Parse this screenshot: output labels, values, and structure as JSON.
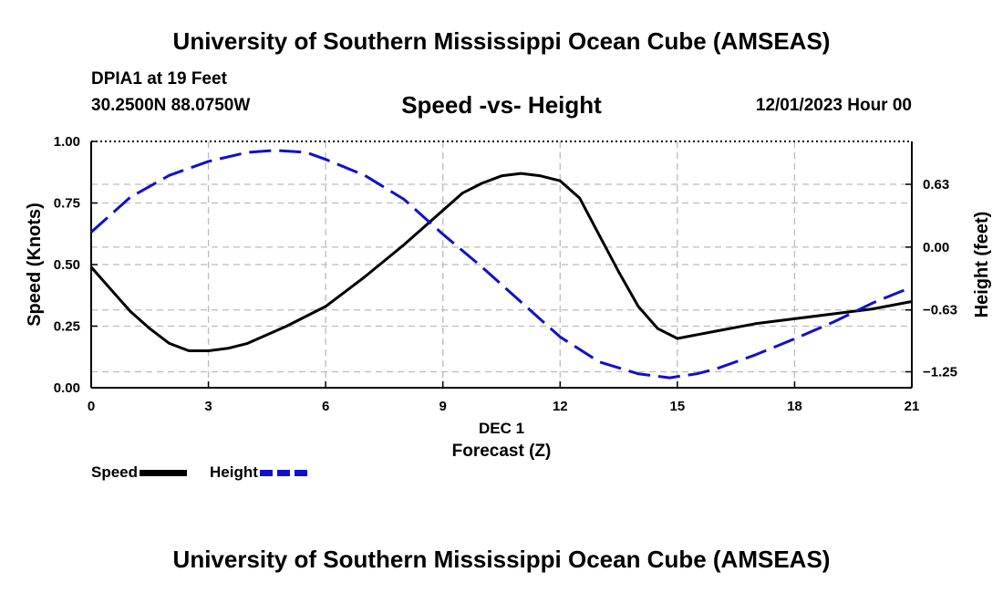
{
  "header": {
    "title": "University of Southern Mississippi Ocean Cube (AMSEAS)",
    "station": "DPIA1 at 19 Feet",
    "coords": "30.2500N  88.0750W",
    "subtitle": "Speed -vs- Height",
    "datetime": "12/01/2023 Hour 00"
  },
  "footer": {
    "title": "University of Southern Mississippi Ocean Cube (AMSEAS)"
  },
  "legend": {
    "speed": "Speed",
    "height": "Height"
  },
  "colors": {
    "speed": "#000000",
    "height": "#1010cc",
    "grid": "#bbbbbb"
  },
  "chart_data": {
    "type": "line",
    "title": "Speed -vs- Height",
    "xlabel": "Forecast (Z)",
    "xlabel_date": "DEC 1",
    "ylabel_left": "Speed (Knots)",
    "ylabel_right": "Height (feet)",
    "xlim": [
      0,
      21
    ],
    "ylim_left": [
      0,
      1
    ],
    "ylim_right": [
      -1.41,
      1.06
    ],
    "x_ticks": [
      0,
      3,
      6,
      9,
      12,
      15,
      18,
      21
    ],
    "x_tick_labels": [
      "0",
      "3",
      "6",
      "9",
      "12",
      "15",
      "18",
      "21"
    ],
    "y_left_ticks": [
      0,
      0.25,
      0.5,
      0.75,
      1.0
    ],
    "y_left_tick_labels": [
      "0.00",
      "0.25",
      "0.50",
      "0.75",
      "1.00"
    ],
    "y_right_ticks": [
      0.63,
      0.0,
      -0.63,
      -1.25
    ],
    "y_right_tick_labels": [
      "0.63",
      "0.00",
      "−0.63",
      "−1.25"
    ],
    "grid": true,
    "series": [
      {
        "name": "Speed",
        "axis": "left",
        "style": "solid",
        "x": [
          0,
          0.5,
          1,
          1.5,
          2,
          2.5,
          3,
          3.5,
          4,
          5,
          6,
          7,
          8,
          9,
          9.5,
          10,
          10.5,
          11,
          11.5,
          12,
          12.5,
          13,
          13.5,
          14,
          14.5,
          15,
          16,
          17,
          18,
          19,
          20,
          21
        ],
        "values": [
          0.49,
          0.4,
          0.31,
          0.24,
          0.18,
          0.15,
          0.15,
          0.16,
          0.18,
          0.25,
          0.33,
          0.45,
          0.58,
          0.72,
          0.79,
          0.83,
          0.86,
          0.87,
          0.86,
          0.84,
          0.77,
          0.62,
          0.47,
          0.33,
          0.24,
          0.2,
          0.23,
          0.26,
          0.28,
          0.3,
          0.32,
          0.35
        ]
      },
      {
        "name": "Height",
        "axis": "right",
        "style": "dashed",
        "x": [
          0,
          1,
          2,
          3,
          4,
          4.7,
          5.5,
          6,
          7,
          8,
          9,
          10,
          11,
          12,
          13,
          14,
          14.8,
          15.5,
          16,
          17,
          18,
          19,
          20,
          21
        ],
        "values": [
          0.15,
          0.5,
          0.72,
          0.86,
          0.95,
          0.97,
          0.95,
          0.88,
          0.72,
          0.48,
          0.13,
          -0.2,
          -0.55,
          -0.9,
          -1.15,
          -1.27,
          -1.31,
          -1.27,
          -1.22,
          -1.08,
          -0.92,
          -0.75,
          -0.56,
          -0.4
        ]
      }
    ]
  }
}
